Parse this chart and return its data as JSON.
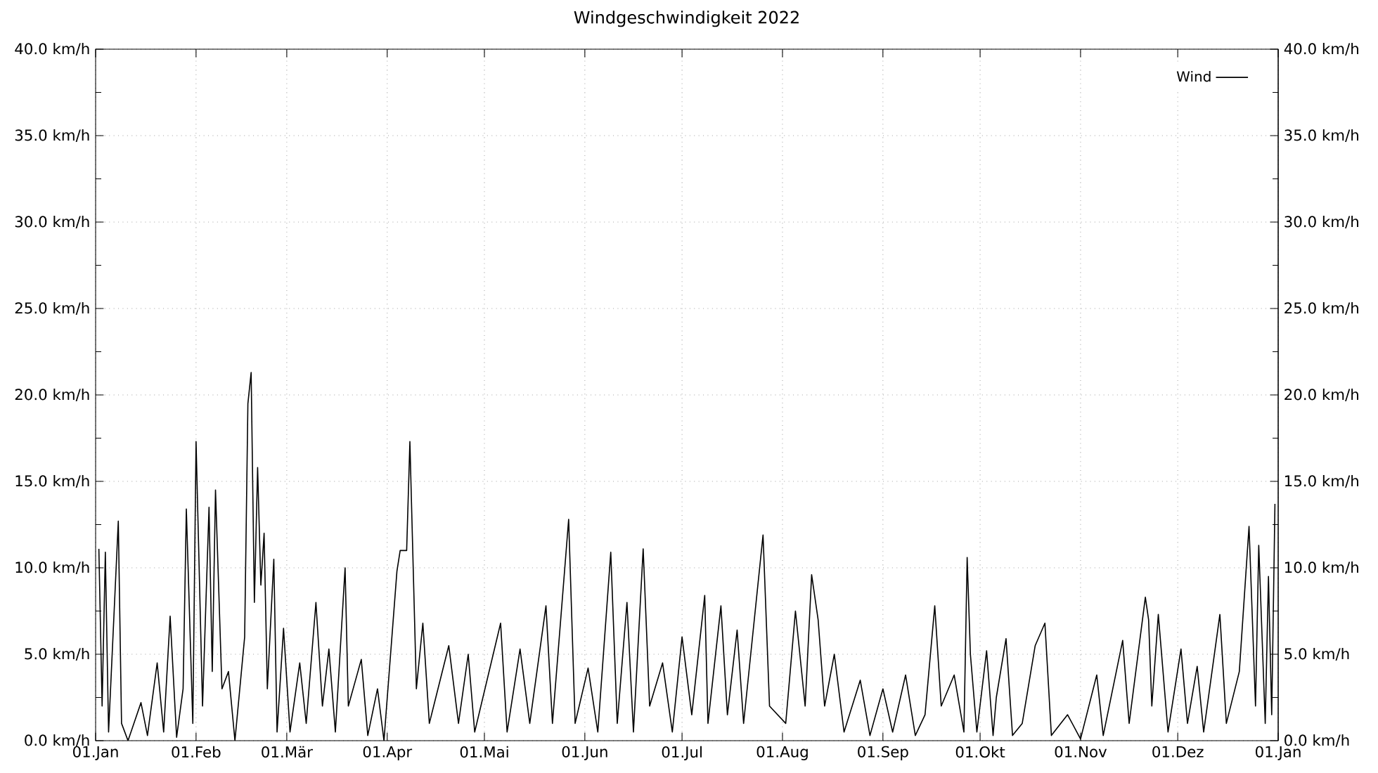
{
  "chart_data": {
    "type": "line",
    "title": "Windgeschwindigkeit 2022",
    "x": [
      "2022-01-02",
      "2022-01-03",
      "2022-01-04",
      "2022-01-05",
      "2022-01-08",
      "2022-01-09",
      "2022-01-11",
      "2022-01-15",
      "2022-01-17",
      "2022-01-20",
      "2022-01-22",
      "2022-01-24",
      "2022-01-26",
      "2022-01-28",
      "2022-01-29",
      "2022-01-31",
      "2022-02-01",
      "2022-02-03",
      "2022-02-05",
      "2022-02-06",
      "2022-02-07",
      "2022-02-09",
      "2022-02-11",
      "2022-02-13",
      "2022-02-16",
      "2022-02-17",
      "2022-02-18",
      "2022-02-19",
      "2022-02-20",
      "2022-02-21",
      "2022-02-22",
      "2022-02-23",
      "2022-02-25",
      "2022-02-26",
      "2022-02-28",
      "2022-03-02",
      "2022-03-05",
      "2022-03-07",
      "2022-03-10",
      "2022-03-12",
      "2022-03-14",
      "2022-03-16",
      "2022-03-19",
      "2022-03-20",
      "2022-03-24",
      "2022-03-26",
      "2022-03-29",
      "2022-03-31",
      "2022-04-04",
      "2022-04-05",
      "2022-04-07",
      "2022-04-08",
      "2022-04-10",
      "2022-04-12",
      "2022-04-14",
      "2022-04-20",
      "2022-04-23",
      "2022-04-26",
      "2022-04-28",
      "2022-05-06",
      "2022-05-08",
      "2022-05-12",
      "2022-05-15",
      "2022-05-20",
      "2022-05-22",
      "2022-05-27",
      "2022-05-29",
      "2022-06-02",
      "2022-06-05",
      "2022-06-09",
      "2022-06-11",
      "2022-06-14",
      "2022-06-16",
      "2022-06-19",
      "2022-06-21",
      "2022-06-25",
      "2022-06-28",
      "2022-07-01",
      "2022-07-04",
      "2022-07-08",
      "2022-07-09",
      "2022-07-13",
      "2022-07-15",
      "2022-07-18",
      "2022-07-20",
      "2022-07-26",
      "2022-07-28",
      "2022-08-02",
      "2022-08-05",
      "2022-08-08",
      "2022-08-10",
      "2022-08-12",
      "2022-08-14",
      "2022-08-17",
      "2022-08-20",
      "2022-08-25",
      "2022-08-28",
      "2022-09-01",
      "2022-09-04",
      "2022-09-08",
      "2022-09-11",
      "2022-09-14",
      "2022-09-17",
      "2022-09-19",
      "2022-09-23",
      "2022-09-26",
      "2022-09-27",
      "2022-09-28",
      "2022-09-30",
      "2022-10-03",
      "2022-10-05",
      "2022-10-06",
      "2022-10-09",
      "2022-10-11",
      "2022-10-14",
      "2022-10-18",
      "2022-10-21",
      "2022-10-23",
      "2022-10-28",
      "2022-11-01",
      "2022-11-06",
      "2022-11-08",
      "2022-11-14",
      "2022-11-16",
      "2022-11-21",
      "2022-11-22",
      "2022-11-23",
      "2022-11-25",
      "2022-11-28",
      "2022-12-02",
      "2022-12-04",
      "2022-12-07",
      "2022-12-09",
      "2022-12-14",
      "2022-12-16",
      "2022-12-20",
      "2022-12-23",
      "2022-12-25",
      "2022-12-26",
      "2022-12-28",
      "2022-12-29",
      "2022-12-30",
      "2022-12-31"
    ],
    "series": [
      {
        "name": "Wind",
        "color": "#000000",
        "values": [
          11.1,
          2,
          10.9,
          0.5,
          12.7,
          1,
          0,
          2.2,
          0.3,
          4.5,
          0.5,
          7.2,
          0.2,
          3,
          13.4,
          1,
          17.3,
          2,
          13.5,
          4,
          14.5,
          3,
          4,
          0,
          6,
          19.5,
          21.3,
          8,
          15.8,
          9,
          12,
          3,
          10.5,
          0.5,
          6.5,
          0.5,
          4.5,
          1,
          8,
          2,
          5.3,
          0.5,
          10,
          2,
          4.7,
          0.3,
          3,
          0,
          9.8,
          11,
          11,
          17.3,
          3,
          6.8,
          1,
          5.5,
          1,
          5,
          0.5,
          6.8,
          0.5,
          5.3,
          1,
          7.8,
          1,
          12.8,
          1,
          4.2,
          0.5,
          10.9,
          1,
          8,
          0.5,
          11.1,
          2,
          4.5,
          0.5,
          6,
          1.5,
          8.4,
          1,
          7.8,
          1.5,
          6.4,
          1,
          11.9,
          2,
          1,
          7.5,
          2,
          9.6,
          7,
          2,
          5,
          0.5,
          3.5,
          0.3,
          3,
          0.5,
          3.8,
          0.3,
          1.5,
          7.8,
          2,
          3.8,
          0.5,
          10.6,
          5,
          0.5,
          5.2,
          0.3,
          2.5,
          5.9,
          0.3,
          1,
          5.5,
          6.8,
          0.3,
          1.5,
          0.1,
          3.8,
          0.3,
          5.8,
          1,
          8.3,
          7,
          2,
          7.3,
          0.5,
          5.3,
          1,
          4.3,
          0.5,
          7.3,
          1,
          4,
          12.4,
          2,
          11.3,
          1,
          9.5,
          1.5,
          13.7
        ]
      }
    ],
    "xlim": [
      "2022-01-01",
      "2023-01-01"
    ],
    "xticks": [
      {
        "value": "2022-01-01",
        "label": "01.Jan"
      },
      {
        "value": "2022-02-01",
        "label": "01.Feb"
      },
      {
        "value": "2022-03-01",
        "label": "01.Mär"
      },
      {
        "value": "2022-04-01",
        "label": "01.Apr"
      },
      {
        "value": "2022-05-01",
        "label": "01.Mai"
      },
      {
        "value": "2022-06-01",
        "label": "01.Jun"
      },
      {
        "value": "2022-07-01",
        "label": "01.Jul"
      },
      {
        "value": "2022-08-01",
        "label": "01.Aug"
      },
      {
        "value": "2022-09-01",
        "label": "01.Sep"
      },
      {
        "value": "2022-10-01",
        "label": "01.Okt"
      },
      {
        "value": "2022-11-01",
        "label": "01.Nov"
      },
      {
        "value": "2022-12-01",
        "label": "01.Dez"
      },
      {
        "value": "2023-01-01",
        "label": "01.Jan"
      }
    ],
    "ylim": [
      0,
      40
    ],
    "yticks": [
      {
        "value": 0,
        "label": "0.0 km/h"
      },
      {
        "value": 5,
        "label": "5.0 km/h"
      },
      {
        "value": 10,
        "label": "10.0 km/h"
      },
      {
        "value": 15,
        "label": "15.0 km/h"
      },
      {
        "value": 20,
        "label": "20.0 km/h"
      },
      {
        "value": 25,
        "label": "25.0 km/h"
      },
      {
        "value": 30,
        "label": "30.0 km/h"
      },
      {
        "value": 35,
        "label": "35.0 km/h"
      },
      {
        "value": 40,
        "label": "40.0 km/h"
      }
    ],
    "y2lim": [
      0,
      40
    ],
    "y2ticks": [
      {
        "value": 0,
        "label": "0.0 km/h"
      },
      {
        "value": 5,
        "label": "5.0 km/h"
      },
      {
        "value": 10,
        "label": "10.0 km/h"
      },
      {
        "value": 15,
        "label": "15.0 km/h"
      },
      {
        "value": 20,
        "label": "20.0 km/h"
      },
      {
        "value": 25,
        "label": "25.0 km/h"
      },
      {
        "value": 30,
        "label": "30.0 km/h"
      },
      {
        "value": 35,
        "label": "35.0 km/h"
      },
      {
        "value": 40,
        "label": "40.0 km/h"
      }
    ],
    "grid": true,
    "legend": "top right"
  }
}
